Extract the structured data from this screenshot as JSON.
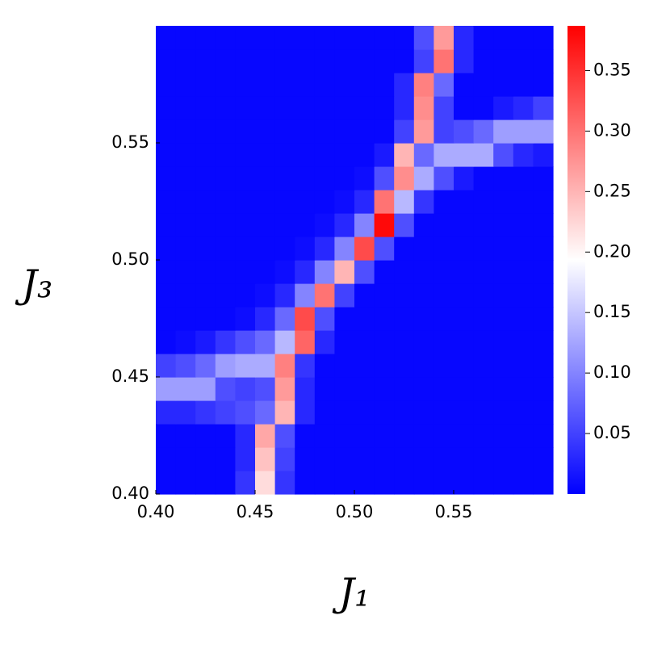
{
  "chart_data": {
    "type": "heatmap",
    "x_label": "J₁",
    "y_label": "J₃",
    "x": [
      0.405,
      0.415,
      0.425,
      0.435,
      0.445,
      0.455,
      0.465,
      0.475,
      0.485,
      0.495,
      0.505,
      0.515,
      0.525,
      0.535,
      0.545,
      0.555,
      0.565,
      0.575,
      0.585,
      0.595
    ],
    "y": [
      0.405,
      0.415,
      0.425,
      0.435,
      0.445,
      0.455,
      0.465,
      0.475,
      0.485,
      0.495,
      0.505,
      0.515,
      0.525,
      0.535,
      0.545,
      0.555,
      0.565,
      0.575,
      0.585,
      0.595
    ],
    "z": [
      [
        0.005,
        0.005,
        0.005,
        0.005,
        0.04,
        0.22,
        0.04,
        0.005,
        0.005,
        0.005,
        0.005,
        0.005,
        0.005,
        0.005,
        0.005,
        0.005,
        0.005,
        0.005,
        0.005,
        0.005
      ],
      [
        0.005,
        0.005,
        0.005,
        0.005,
        0.03,
        0.24,
        0.05,
        0.005,
        0.005,
        0.005,
        0.005,
        0.005,
        0.005,
        0.005,
        0.005,
        0.005,
        0.005,
        0.005,
        0.005,
        0.005
      ],
      [
        0.005,
        0.005,
        0.005,
        0.005,
        0.03,
        0.26,
        0.06,
        0.005,
        0.005,
        0.005,
        0.005,
        0.005,
        0.005,
        0.005,
        0.005,
        0.005,
        0.005,
        0.005,
        0.005,
        0.005
      ],
      [
        0.03,
        0.03,
        0.04,
        0.05,
        0.06,
        0.08,
        0.25,
        0.03,
        0.005,
        0.005,
        0.005,
        0.005,
        0.005,
        0.005,
        0.005,
        0.005,
        0.005,
        0.005,
        0.005,
        0.005
      ],
      [
        0.12,
        0.12,
        0.12,
        0.06,
        0.05,
        0.06,
        0.27,
        0.03,
        0.005,
        0.005,
        0.005,
        0.005,
        0.005,
        0.005,
        0.005,
        0.005,
        0.005,
        0.005,
        0.005,
        0.005
      ],
      [
        0.05,
        0.06,
        0.08,
        0.12,
        0.13,
        0.13,
        0.29,
        0.04,
        0.005,
        0.005,
        0.005,
        0.005,
        0.005,
        0.005,
        0.005,
        0.005,
        0.005,
        0.005,
        0.005,
        0.005
      ],
      [
        0.005,
        0.01,
        0.02,
        0.04,
        0.06,
        0.08,
        0.14,
        0.31,
        0.03,
        0.005,
        0.005,
        0.005,
        0.005,
        0.005,
        0.005,
        0.005,
        0.005,
        0.005,
        0.005,
        0.005
      ],
      [
        0.005,
        0.005,
        0.005,
        0.005,
        0.01,
        0.03,
        0.08,
        0.33,
        0.06,
        0.005,
        0.005,
        0.005,
        0.005,
        0.005,
        0.005,
        0.005,
        0.005,
        0.005,
        0.005,
        0.005
      ],
      [
        0.005,
        0.005,
        0.005,
        0.005,
        0.005,
        0.01,
        0.03,
        0.1,
        0.3,
        0.05,
        0.005,
        0.005,
        0.005,
        0.005,
        0.005,
        0.005,
        0.005,
        0.005,
        0.005,
        0.005
      ],
      [
        0.005,
        0.005,
        0.005,
        0.005,
        0.005,
        0.005,
        0.01,
        0.03,
        0.1,
        0.25,
        0.06,
        0.005,
        0.005,
        0.005,
        0.005,
        0.005,
        0.005,
        0.005,
        0.005,
        0.005
      ],
      [
        0.005,
        0.005,
        0.005,
        0.005,
        0.005,
        0.005,
        0.005,
        0.01,
        0.03,
        0.1,
        0.33,
        0.06,
        0.005,
        0.005,
        0.005,
        0.005,
        0.005,
        0.005,
        0.005,
        0.005
      ],
      [
        0.005,
        0.005,
        0.005,
        0.005,
        0.005,
        0.005,
        0.005,
        0.005,
        0.01,
        0.03,
        0.1,
        0.38,
        0.06,
        0.005,
        0.005,
        0.005,
        0.005,
        0.005,
        0.005,
        0.005
      ],
      [
        0.005,
        0.005,
        0.005,
        0.005,
        0.005,
        0.005,
        0.005,
        0.005,
        0.005,
        0.01,
        0.03,
        0.3,
        0.14,
        0.04,
        0.005,
        0.005,
        0.005,
        0.005,
        0.005,
        0.005
      ],
      [
        0.005,
        0.005,
        0.005,
        0.005,
        0.005,
        0.005,
        0.005,
        0.005,
        0.005,
        0.005,
        0.01,
        0.06,
        0.28,
        0.13,
        0.06,
        0.02,
        0.005,
        0.005,
        0.005,
        0.005
      ],
      [
        0.005,
        0.005,
        0.005,
        0.005,
        0.005,
        0.005,
        0.005,
        0.005,
        0.005,
        0.005,
        0.005,
        0.02,
        0.25,
        0.08,
        0.13,
        0.13,
        0.13,
        0.06,
        0.03,
        0.02
      ],
      [
        0.005,
        0.005,
        0.005,
        0.005,
        0.005,
        0.005,
        0.005,
        0.005,
        0.005,
        0.005,
        0.005,
        0.005,
        0.05,
        0.27,
        0.05,
        0.06,
        0.08,
        0.12,
        0.12,
        0.12
      ],
      [
        0.005,
        0.005,
        0.005,
        0.005,
        0.005,
        0.005,
        0.005,
        0.005,
        0.005,
        0.005,
        0.005,
        0.005,
        0.03,
        0.28,
        0.05,
        0.005,
        0.005,
        0.02,
        0.03,
        0.05
      ],
      [
        0.005,
        0.005,
        0.005,
        0.005,
        0.005,
        0.005,
        0.005,
        0.005,
        0.005,
        0.005,
        0.005,
        0.005,
        0.03,
        0.29,
        0.08,
        0.005,
        0.005,
        0.005,
        0.005,
        0.005
      ],
      [
        0.005,
        0.005,
        0.005,
        0.005,
        0.005,
        0.005,
        0.005,
        0.005,
        0.005,
        0.005,
        0.005,
        0.005,
        0.005,
        0.05,
        0.3,
        0.03,
        0.005,
        0.005,
        0.005,
        0.005
      ],
      [
        0.005,
        0.005,
        0.005,
        0.005,
        0.005,
        0.005,
        0.005,
        0.005,
        0.005,
        0.005,
        0.005,
        0.005,
        0.005,
        0.06,
        0.27,
        0.03,
        0.005,
        0.005,
        0.005,
        0.005
      ]
    ],
    "xlim": [
      0.4,
      0.6
    ],
    "ylim": [
      0.4,
      0.6
    ],
    "zlim": [
      0,
      0.387
    ],
    "xticks": [
      {
        "value": 0.4,
        "label": "0.40"
      },
      0.45,
      {
        "value": 0.5,
        "label": "0.50"
      },
      0.55
    ],
    "yticks": [
      {
        "value": 0.4,
        "label": "0.40"
      },
      0.45,
      {
        "value": 0.5,
        "label": "0.50"
      },
      0.55
    ],
    "zticks": [
      0.05,
      {
        "value": 0.1,
        "label": "0.10"
      },
      0.15,
      {
        "value": 0.2,
        "label": "0.20"
      },
      0.25,
      {
        "value": 0.3,
        "label": "0.30"
      },
      0.35
    ],
    "colormap": [
      "#0000ff",
      "#ffffff",
      "#ff0000"
    ]
  }
}
